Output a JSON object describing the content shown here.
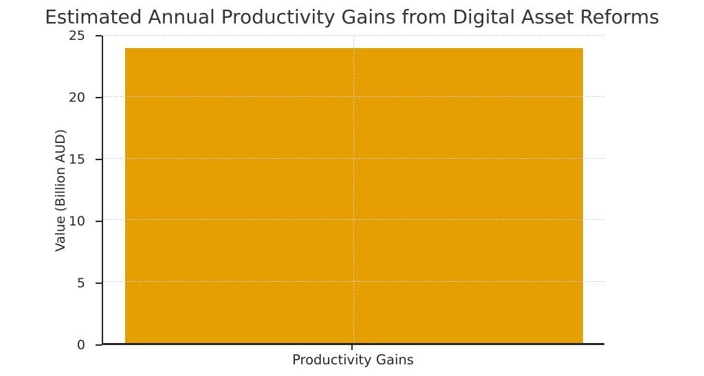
{
  "chart_data": {
    "type": "bar",
    "title": "Estimated Annual Productivity Gains from Digital Asset Reforms",
    "categories": [
      "Productivity Gains"
    ],
    "values": [
      24
    ],
    "xlabel": "",
    "ylabel": "Value (Billion AUD)",
    "ylim": [
      0,
      25
    ],
    "yticks": [
      0,
      5,
      10,
      15,
      20,
      25
    ],
    "bar_color": "#E69F00",
    "background_color": "#ffffff",
    "spine_color": "#262626",
    "grid": {
      "horizontal": true,
      "vertical_at_category_center": true,
      "style": "dashed",
      "color": "#cfcfcf",
      "drawn_above_bars": true
    },
    "legend": "none"
  }
}
